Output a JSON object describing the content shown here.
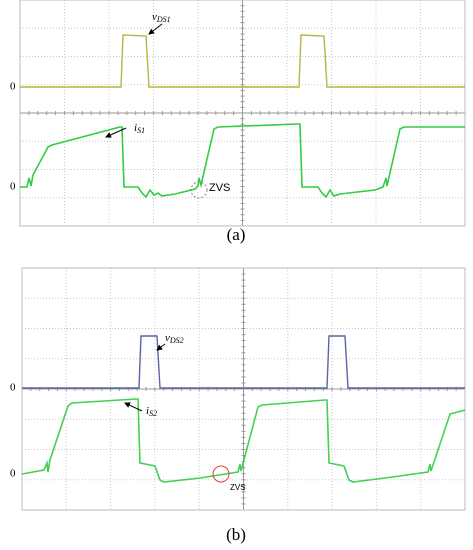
{
  "panels": [
    {
      "zero_labels": [
        "0",
        "0"
      ],
      "voltage_label": {
        "symbol": "v",
        "subscript": "DS1"
      },
      "current_label": {
        "symbol": "i",
        "subscript": "S1"
      },
      "annotation": "ZVS",
      "caption": "(a)"
    },
    {
      "zero_labels": [
        "0",
        "0"
      ],
      "voltage_label": {
        "symbol": "v",
        "subscript": "DS2"
      },
      "current_label": {
        "symbol": "i",
        "subscript": "S2"
      },
      "annotation": "ZVS",
      "caption": "(b)"
    }
  ]
}
